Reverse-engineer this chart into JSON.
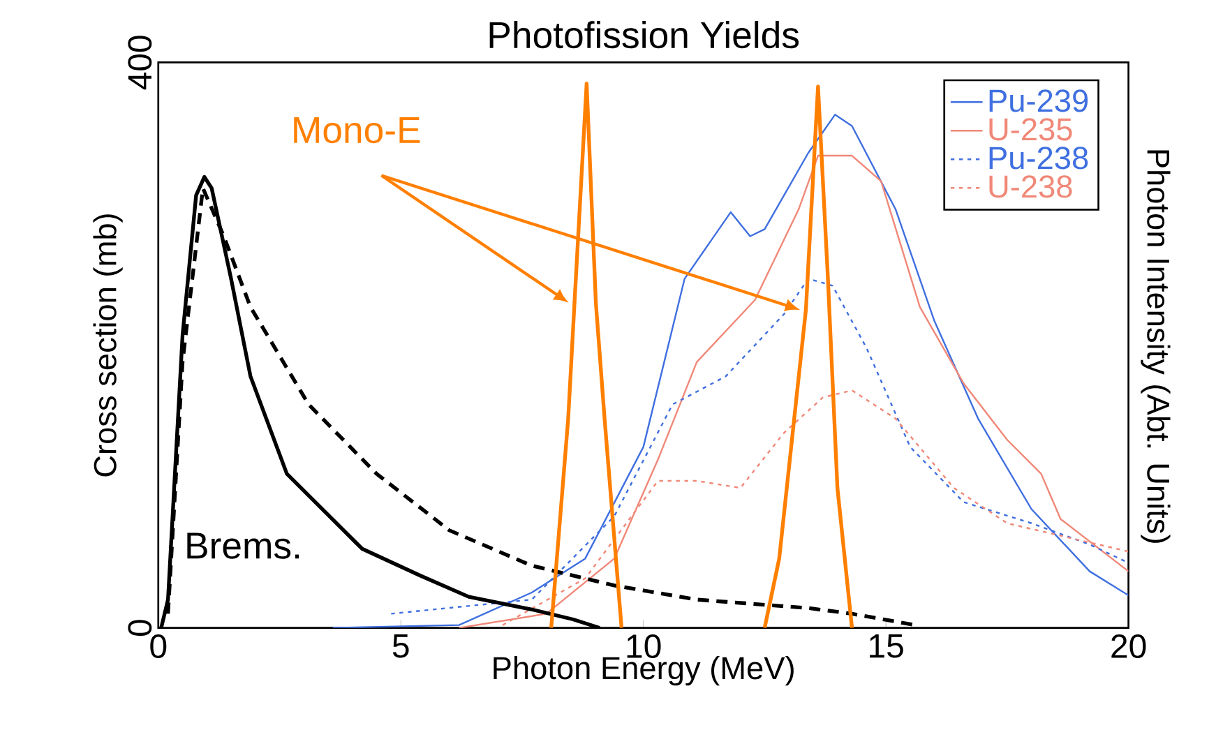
{
  "chart_data": {
    "type": "line",
    "title": "Photofission Yields",
    "xlabel": "Photon Energy (MeV)",
    "ylabel": "Cross section (mb)",
    "y2label": "Photon Intensity (Abt. Units)",
    "xlim": [
      0,
      20
    ],
    "xticks": [
      0,
      5,
      10,
      15,
      20
    ],
    "ylim": [
      0,
      400
    ],
    "yticks": [
      0,
      400
    ],
    "marker": "none",
    "legend": "top right",
    "annotations": [
      "Brems.",
      "Mono-E"
    ],
    "series": [
      {
        "name": "Pu-239",
        "color": "#3f6fe0",
        "line_style": "solid",
        "x": [
          3.6,
          6.2,
          7.7,
          8.8,
          10,
          10.85,
          11.8,
          12.2,
          12.5,
          13.4,
          13.95,
          14.3,
          15.2,
          16.0,
          16.9,
          18.0,
          19.2,
          20
        ],
        "values": [
          0,
          2,
          25,
          49,
          128,
          247,
          294,
          277,
          282,
          336,
          363,
          355,
          296,
          217,
          148,
          84,
          40,
          23
        ]
      },
      {
        "name": "U-235",
        "color": "#f08878",
        "line_style": "solid",
        "x": [
          6.2,
          8.0,
          9.4,
          10.3,
          11.1,
          12.3,
          13.2,
          13.6,
          14.3,
          14.9,
          15.7,
          16.6,
          17.5,
          18.2,
          18.6,
          20
        ],
        "values": [
          0,
          10,
          49,
          119,
          188,
          232,
          296,
          334,
          334,
          316,
          227,
          173,
          133,
          109,
          77,
          40
        ]
      },
      {
        "name": "Pu-238",
        "color": "#3f6fe0",
        "line_style": "dotted",
        "x": [
          4.8,
          7.7,
          9.4,
          10.6,
          11.7,
          12.9,
          13.4,
          13.9,
          14.6,
          15.5,
          16.6,
          18.0,
          19.2,
          20
        ],
        "values": [
          10,
          20,
          79,
          158,
          178,
          222,
          247,
          242,
          198,
          128,
          89,
          74,
          59,
          46
        ]
      },
      {
        "name": "U-238",
        "color": "#f08878",
        "line_style": "dotted",
        "x": [
          7.1,
          8.8,
          10.3,
          11.1,
          12.0,
          12.9,
          13.7,
          14.3,
          15.2,
          16.4,
          17.5,
          20
        ],
        "values": [
          2,
          35,
          104,
          104,
          99,
          138,
          163,
          168,
          148,
          99,
          74,
          54
        ]
      },
      {
        "color": "#000000",
        "line_style": "solid",
        "x": [
          0.06,
          0.2,
          0.5,
          0.78,
          0.95,
          1.1,
          1.5,
          1.9,
          2.65,
          4.2,
          5.4,
          6.4,
          7.7,
          8.55,
          9.1
        ],
        "values": [
          0,
          20,
          207,
          306,
          319,
          311,
          247,
          178,
          109,
          56,
          37,
          22,
          13,
          6,
          0
        ]
      },
      {
        "color": "#000000",
        "line_style": "dashed",
        "x": [
          0.2,
          0.5,
          0.92,
          1.35,
          1.9,
          3.1,
          4.5,
          6.0,
          7.7,
          9.4,
          11.1,
          13.4,
          14.3,
          15.6
        ],
        "values": [
          10,
          188,
          311,
          277,
          227,
          158,
          109,
          69,
          44,
          30,
          20,
          14,
          10,
          2
        ]
      },
      {
        "color": "#ff7f00",
        "line_style": "solid",
        "x": [
          8.1,
          8.45,
          8.58,
          8.83,
          9.02,
          9.2,
          9.55
        ],
        "values": [
          0,
          148,
          230,
          385,
          230,
          148,
          0
        ]
      },
      {
        "color": "#ff7f00",
        "line_style": "solid",
        "x": [
          12.5,
          12.8,
          13.35,
          13.6,
          13.8,
          14.0,
          14.3
        ],
        "values": [
          0,
          49,
          225,
          383,
          250,
          99,
          0
        ]
      }
    ]
  }
}
